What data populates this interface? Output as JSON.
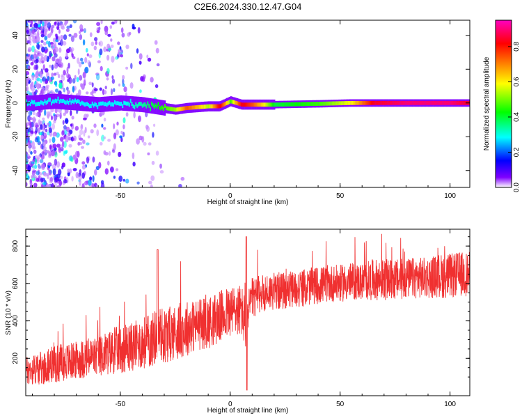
{
  "title": "C2E6.2024.330.12.47.G04",
  "colors": {
    "snr_line": "#f03030",
    "track_low": "#4a00d8",
    "track_mid": "#00e8a0",
    "track_high": "#ff2a2a"
  },
  "chart_data": [
    {
      "type": "heatmap",
      "xlabel": "Height of straight line (km)",
      "ylabel": "Frequency (Hz)",
      "xlim": [
        -93,
        109
      ],
      "ylim": [
        -50,
        49
      ],
      "xticks": [
        -50,
        0,
        50,
        100
      ],
      "yticks": [
        40,
        20,
        0,
        -20,
        -40
      ],
      "colorbar": {
        "label": "Normalized spectral amplitude",
        "range": [
          0,
          0.95
        ],
        "ticks": [
          0.0,
          0.2,
          0.4,
          0.6,
          0.8
        ],
        "colormap": [
          "#ffffff",
          "#8000ff",
          "#0000ff",
          "#00ffff",
          "#00ff00",
          "#ffff00",
          "#ff8000",
          "#ff0000",
          "#ff00c0"
        ]
      },
      "track": [
        {
          "x": -90,
          "freq": 0,
          "amp": 0.35
        },
        {
          "x": -80,
          "freq": 1,
          "amp": 0.35
        },
        {
          "x": -70,
          "freq": 0,
          "amp": 0.35
        },
        {
          "x": -60,
          "freq": -1,
          "amp": 0.35
        },
        {
          "x": -50,
          "freq": 0,
          "amp": 0.35
        },
        {
          "x": -40,
          "freq": -1,
          "amp": 0.4
        },
        {
          "x": -30,
          "freq": -3,
          "amp": 0.5
        },
        {
          "x": -25,
          "freq": -4,
          "amp": 0.55
        },
        {
          "x": -20,
          "freq": -3,
          "amp": 0.75
        },
        {
          "x": -10,
          "freq": -2,
          "amp": 0.55
        },
        {
          "x": -5,
          "freq": -2,
          "amp": 0.85
        },
        {
          "x": 0,
          "freq": 1,
          "amp": 0.5
        },
        {
          "x": 5,
          "freq": -1,
          "amp": 0.85
        },
        {
          "x": 10,
          "freq": -1,
          "amp": 0.75
        },
        {
          "x": 20,
          "freq": -1,
          "amp": 0.45
        },
        {
          "x": 40,
          "freq": -0.5,
          "amp": 0.5
        },
        {
          "x": 55,
          "freq": 0,
          "amp": 0.6
        },
        {
          "x": 65,
          "freq": 0,
          "amp": 0.85
        },
        {
          "x": 80,
          "freq": 0,
          "amp": 0.9
        },
        {
          "x": 100,
          "freq": 0,
          "amp": 0.9
        },
        {
          "x": 109,
          "freq": 0,
          "amp": 0.85
        }
      ]
    },
    {
      "type": "line",
      "xlabel": "Height of straight line (km)",
      "ylabel": "SNR (10 * v/v)",
      "xlim": [
        -93,
        109
      ],
      "ylim": [
        0,
        890
      ],
      "xticks": [
        -50,
        0,
        50,
        100
      ],
      "yticks": [
        200,
        400,
        600,
        800
      ],
      "series": [
        {
          "x": [
            -93,
            -85,
            -80,
            -75,
            -70,
            -65,
            -60,
            -55,
            -50,
            -45,
            -40,
            -35,
            -33,
            -30,
            -25,
            -20,
            -15,
            -10,
            -5,
            0,
            5,
            7,
            8,
            10,
            15,
            20,
            25,
            30,
            35,
            40,
            45,
            50,
            55,
            60,
            65,
            70,
            75,
            80,
            85,
            90,
            95,
            100,
            105,
            109
          ],
          "mean": [
            130,
            150,
            170,
            180,
            190,
            200,
            210,
            230,
            250,
            260,
            280,
            300,
            340,
            320,
            340,
            360,
            380,
            390,
            420,
            450,
            460,
            380,
            470,
            520,
            550,
            560,
            560,
            570,
            580,
            590,
            600,
            600,
            610,
            610,
            620,
            620,
            620,
            625,
            630,
            630,
            640,
            640,
            650,
            650
          ],
          "spread": [
            80,
            90,
            100,
            100,
            100,
            110,
            110,
            120,
            130,
            130,
            140,
            150,
            150,
            150,
            150,
            150,
            140,
            140,
            140,
            140,
            140,
            150,
            120,
            110,
            100,
            100,
            100,
            100,
            100,
            100,
            100,
            100,
            100,
            100,
            110,
            110,
            110,
            110,
            110,
            110,
            120,
            120,
            120,
            120
          ]
        }
      ]
    }
  ]
}
